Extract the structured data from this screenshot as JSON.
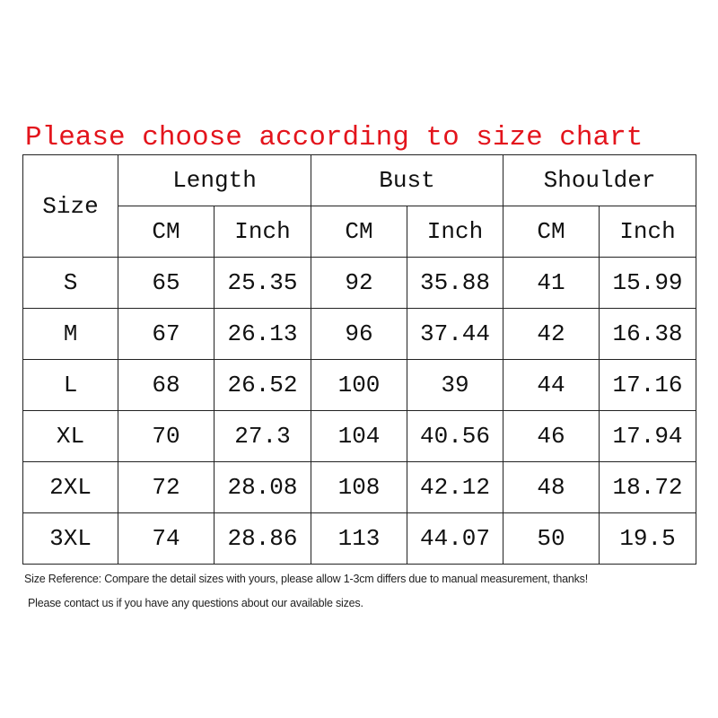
{
  "title": "Please choose according to size chart",
  "table": {
    "size_header": "Size",
    "groups": [
      "Length",
      "Bust",
      "Shoulder"
    ],
    "units": [
      "CM",
      "Inch",
      "CM",
      "Inch",
      "CM",
      "Inch"
    ],
    "rows": [
      [
        "S",
        "65",
        "25.35",
        "92",
        "35.88",
        "41",
        "15.99"
      ],
      [
        "M",
        "67",
        "26.13",
        "96",
        "37.44",
        "42",
        "16.38"
      ],
      [
        "L",
        "68",
        "26.52",
        "100",
        "39",
        "44",
        "17.16"
      ],
      [
        "XL",
        "70",
        "27.3",
        "104",
        "40.56",
        "46",
        "17.94"
      ],
      [
        "2XL",
        "72",
        "28.08",
        "108",
        "42.12",
        "48",
        "18.72"
      ],
      [
        "3XL",
        "74",
        "28.86",
        "113",
        "44.07",
        "50",
        "19.5"
      ]
    ]
  },
  "notes": [
    "Size Reference: Compare the detail sizes with yours, please allow 1-3cm differs due to manual measurement, thanks!",
    "Please contact us if you have any questions about our available sizes."
  ],
  "colors": {
    "title": "#e3141c",
    "border": "#222222"
  }
}
